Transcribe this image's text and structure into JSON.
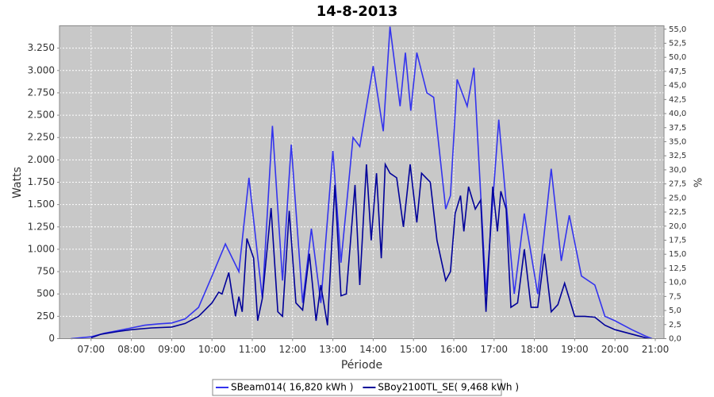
{
  "chart_data": {
    "type": "line",
    "title": "14-8-2013",
    "x_label": "Période",
    "y_label": "Watts",
    "y2_label": "%",
    "xlim": [
      "06:13",
      "21:13"
    ],
    "xticks": [
      "07:00",
      "08:00",
      "09:00",
      "10:00",
      "11:00",
      "12:00",
      "13:00",
      "14:00",
      "15:00",
      "16:00",
      "17:00",
      "18:00",
      "19:00",
      "20:00",
      "21:00"
    ],
    "ylim": [
      0,
      3500
    ],
    "yticks": [
      0,
      250,
      500,
      750,
      {
        "value": 1000,
        "label": "1.000"
      },
      {
        "value": 1250,
        "label": "1.250"
      },
      {
        "value": 1500,
        "label": "1.500"
      },
      {
        "value": 1750,
        "label": "1.750"
      },
      {
        "value": 2000,
        "label": "2.000"
      },
      {
        "value": 2250,
        "label": "2.250"
      },
      {
        "value": 2500,
        "label": "2.500"
      },
      {
        "value": 2750,
        "label": "2.750"
      },
      {
        "value": 3000,
        "label": "3.000"
      },
      {
        "value": 3250,
        "label": "3.250"
      }
    ],
    "y2lim": [
      0,
      55.6
    ],
    "y2ticks": [
      {
        "value": 0,
        "label": "0,0"
      },
      {
        "value": 2.5,
        "label": "2,5"
      },
      {
        "value": 5,
        "label": "5,0"
      },
      {
        "value": 7.5,
        "label": "7,5"
      },
      {
        "value": 10,
        "label": "10,0"
      },
      {
        "value": 12.5,
        "label": "12,5"
      },
      {
        "value": 15,
        "label": "15,0"
      },
      {
        "value": 17.5,
        "label": "17,5"
      },
      {
        "value": 20,
        "label": "20,0"
      },
      {
        "value": 22.5,
        "label": "22,5"
      },
      {
        "value": 25,
        "label": "25,0"
      },
      {
        "value": 27.5,
        "label": "27,5"
      },
      {
        "value": 30,
        "label": "30,0"
      },
      {
        "value": 32.5,
        "label": "32,5"
      },
      {
        "value": 35,
        "label": "35,0"
      },
      {
        "value": 37.5,
        "label": "37,5"
      },
      {
        "value": 40,
        "label": "40,0"
      },
      {
        "value": 42.5,
        "label": "42,5"
      },
      {
        "value": 45,
        "label": "45,0"
      },
      {
        "value": 47.5,
        "label": "47,5"
      },
      {
        "value": 50,
        "label": "50,0"
      },
      {
        "value": 52.5,
        "label": "52,5"
      },
      {
        "value": 55,
        "label": "55,0"
      }
    ],
    "grid": true,
    "legend": "bottom",
    "series": [
      {
        "name": "SBeam014( 16,820 kWh )",
        "color": "#3333ee",
        "x": [
          "06:30",
          "07:00",
          "07:20",
          "07:40",
          "08:00",
          "08:20",
          "08:40",
          "09:00",
          "09:20",
          "09:40",
          "10:00",
          "10:20",
          "10:40",
          "10:55",
          "11:15",
          "11:30",
          "11:45",
          "11:58",
          "12:15",
          "12:28",
          "12:42",
          "13:00",
          "13:12",
          "13:30",
          "13:40",
          "14:00",
          "14:15",
          "14:25",
          "14:40",
          "14:48",
          "14:56",
          "15:05",
          "15:20",
          "15:30",
          "15:48",
          "15:55",
          "16:05",
          "16:20",
          "16:30",
          "16:48",
          "17:07",
          "17:30",
          "17:45",
          "18:05",
          "18:25",
          "18:40",
          "18:52",
          "19:10",
          "19:30",
          "19:45",
          "20:00",
          "20:25",
          "20:45",
          "20:55"
        ],
        "values": [
          0,
          20,
          60,
          90,
          120,
          150,
          165,
          175,
          220,
          350,
          700,
          1060,
          750,
          1800,
          450,
          2380,
          650,
          2170,
          400,
          1230,
          400,
          2100,
          850,
          2250,
          2150,
          3050,
          2320,
          3490,
          2600,
          3200,
          2550,
          3200,
          2750,
          2700,
          1450,
          1600,
          2900,
          2600,
          3030,
          500,
          2450,
          500,
          1400,
          500,
          1900,
          870,
          1380,
          700,
          600,
          250,
          200,
          100,
          30,
          0
        ]
      },
      {
        "name": "SBoy2100TL_SE( 9,468 kWh )",
        "color": "#000099",
        "x": [
          "07:00",
          "07:15",
          "07:40",
          "08:00",
          "08:30",
          "09:00",
          "09:20",
          "09:40",
          "10:00",
          "10:10",
          "10:15",
          "10:25",
          "10:35",
          "10:40",
          "10:45",
          "10:52",
          "11:02",
          "11:08",
          "11:15",
          "11:28",
          "11:38",
          "11:45",
          "11:55",
          "12:05",
          "12:15",
          "12:25",
          "12:35",
          "12:42",
          "12:52",
          "13:03",
          "13:12",
          "13:20",
          "13:33",
          "13:40",
          "13:50",
          "13:57",
          "14:05",
          "14:12",
          "14:18",
          "14:25",
          "14:35",
          "14:45",
          "14:55",
          "15:05",
          "15:12",
          "15:25",
          "15:35",
          "15:48",
          "15:55",
          "16:02",
          "16:10",
          "16:15",
          "16:22",
          "16:32",
          "16:40",
          "16:48",
          "16:58",
          "17:05",
          "17:10",
          "17:18",
          "17:25",
          "17:35",
          "17:45",
          "17:55",
          "18:05",
          "18:15",
          "18:25",
          "18:35",
          "18:45",
          "19:00",
          "19:15",
          "19:30",
          "19:45",
          "20:00",
          "20:20",
          "20:40",
          "20:50"
        ],
        "values": [
          10,
          50,
          80,
          100,
          120,
          130,
          170,
          250,
          400,
          520,
          500,
          740,
          250,
          470,
          300,
          1120,
          900,
          200,
          450,
          1460,
          300,
          250,
          1430,
          400,
          320,
          950,
          200,
          600,
          150,
          1720,
          480,
          500,
          1720,
          600,
          1950,
          1100,
          1850,
          900,
          1950,
          1850,
          1800,
          1250,
          1950,
          1300,
          1850,
          1750,
          1100,
          650,
          750,
          1400,
          1600,
          1200,
          1700,
          1450,
          1550,
          300,
          1700,
          1200,
          1650,
          1450,
          350,
          400,
          1000,
          350,
          350,
          950,
          300,
          380,
          620,
          250,
          250,
          240,
          150,
          100,
          60,
          20,
          0
        ]
      }
    ]
  }
}
